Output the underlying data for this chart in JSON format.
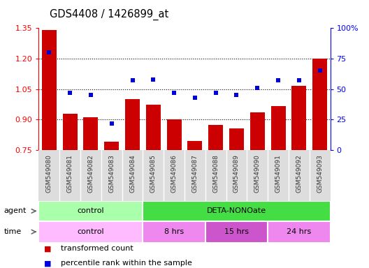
{
  "title": "GDS4408 / 1426899_at",
  "samples": [
    "GSM549080",
    "GSM549081",
    "GSM549082",
    "GSM549083",
    "GSM549084",
    "GSM549085",
    "GSM549086",
    "GSM549087",
    "GSM549088",
    "GSM549089",
    "GSM549090",
    "GSM549091",
    "GSM549092",
    "GSM549093"
  ],
  "bar_values": [
    1.34,
    0.93,
    0.91,
    0.79,
    1.0,
    0.975,
    0.9,
    0.795,
    0.875,
    0.855,
    0.935,
    0.965,
    1.065,
    1.2
  ],
  "scatter_pct": [
    80,
    47,
    45,
    22,
    57,
    58,
    47,
    43,
    47,
    45,
    51,
    57,
    57,
    65
  ],
  "ylim_left": [
    0.75,
    1.35
  ],
  "ylim_right": [
    0,
    100
  ],
  "yticks_left": [
    0.75,
    0.9,
    1.05,
    1.2,
    1.35
  ],
  "yticks_left_labels": [
    "0.75",
    "0.90",
    "1.05",
    "1.20",
    "1.35"
  ],
  "yticks_right": [
    0,
    25,
    50,
    75,
    100
  ],
  "yticks_right_labels": [
    "0",
    "25",
    "50",
    "75",
    "100%"
  ],
  "bar_color": "#cc0000",
  "scatter_color": "#0000dd",
  "agent_groups": [
    {
      "label": "control",
      "start": 0,
      "end": 5,
      "color": "#aaffaa"
    },
    {
      "label": "DETA-NONOate",
      "start": 5,
      "end": 14,
      "color": "#44dd44"
    }
  ],
  "time_groups": [
    {
      "label": "control",
      "start": 0,
      "end": 5,
      "color": "#ffbbff"
    },
    {
      "label": "8 hrs",
      "start": 5,
      "end": 8,
      "color": "#ee88ee"
    },
    {
      "label": "15 hrs",
      "start": 8,
      "end": 11,
      "color": "#cc55cc"
    },
    {
      "label": "24 hrs",
      "start": 11,
      "end": 14,
      "color": "#ee88ee"
    }
  ],
  "legend_items": [
    {
      "label": "transformed count",
      "color": "#cc0000",
      "marker": "s"
    },
    {
      "label": "percentile rank within the sample",
      "color": "#0000dd",
      "marker": "s"
    }
  ],
  "agent_label": "agent",
  "time_label": "time"
}
